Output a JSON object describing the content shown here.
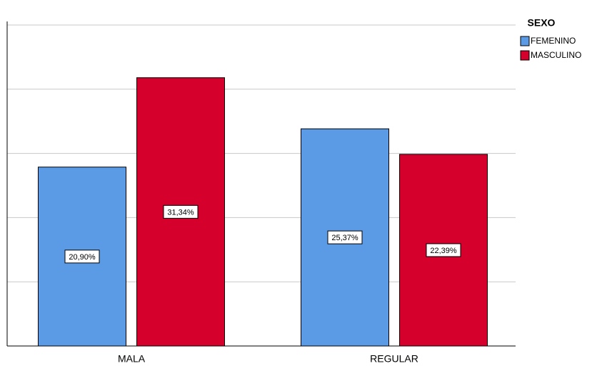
{
  "chart_data": {
    "type": "bar",
    "categories": [
      "MALA",
      "REGULAR"
    ],
    "series": [
      {
        "name": "FEMENINO",
        "color": "#5b9be6",
        "values": [
          20.9,
          25.37
        ],
        "value_labels": [
          "20,90%",
          "25,37%"
        ]
      },
      {
        "name": "MASCULINO",
        "color": "#d5002b",
        "values": [
          31.34,
          22.39
        ],
        "value_labels": [
          "31,34%",
          "22,39%"
        ]
      }
    ],
    "legend_title": "SEXO",
    "legend": "right",
    "ylim": [
      0,
      40
    ],
    "yticks": [
      0,
      7.5,
      15,
      22.5,
      30,
      37.5
    ],
    "grid": true
  }
}
